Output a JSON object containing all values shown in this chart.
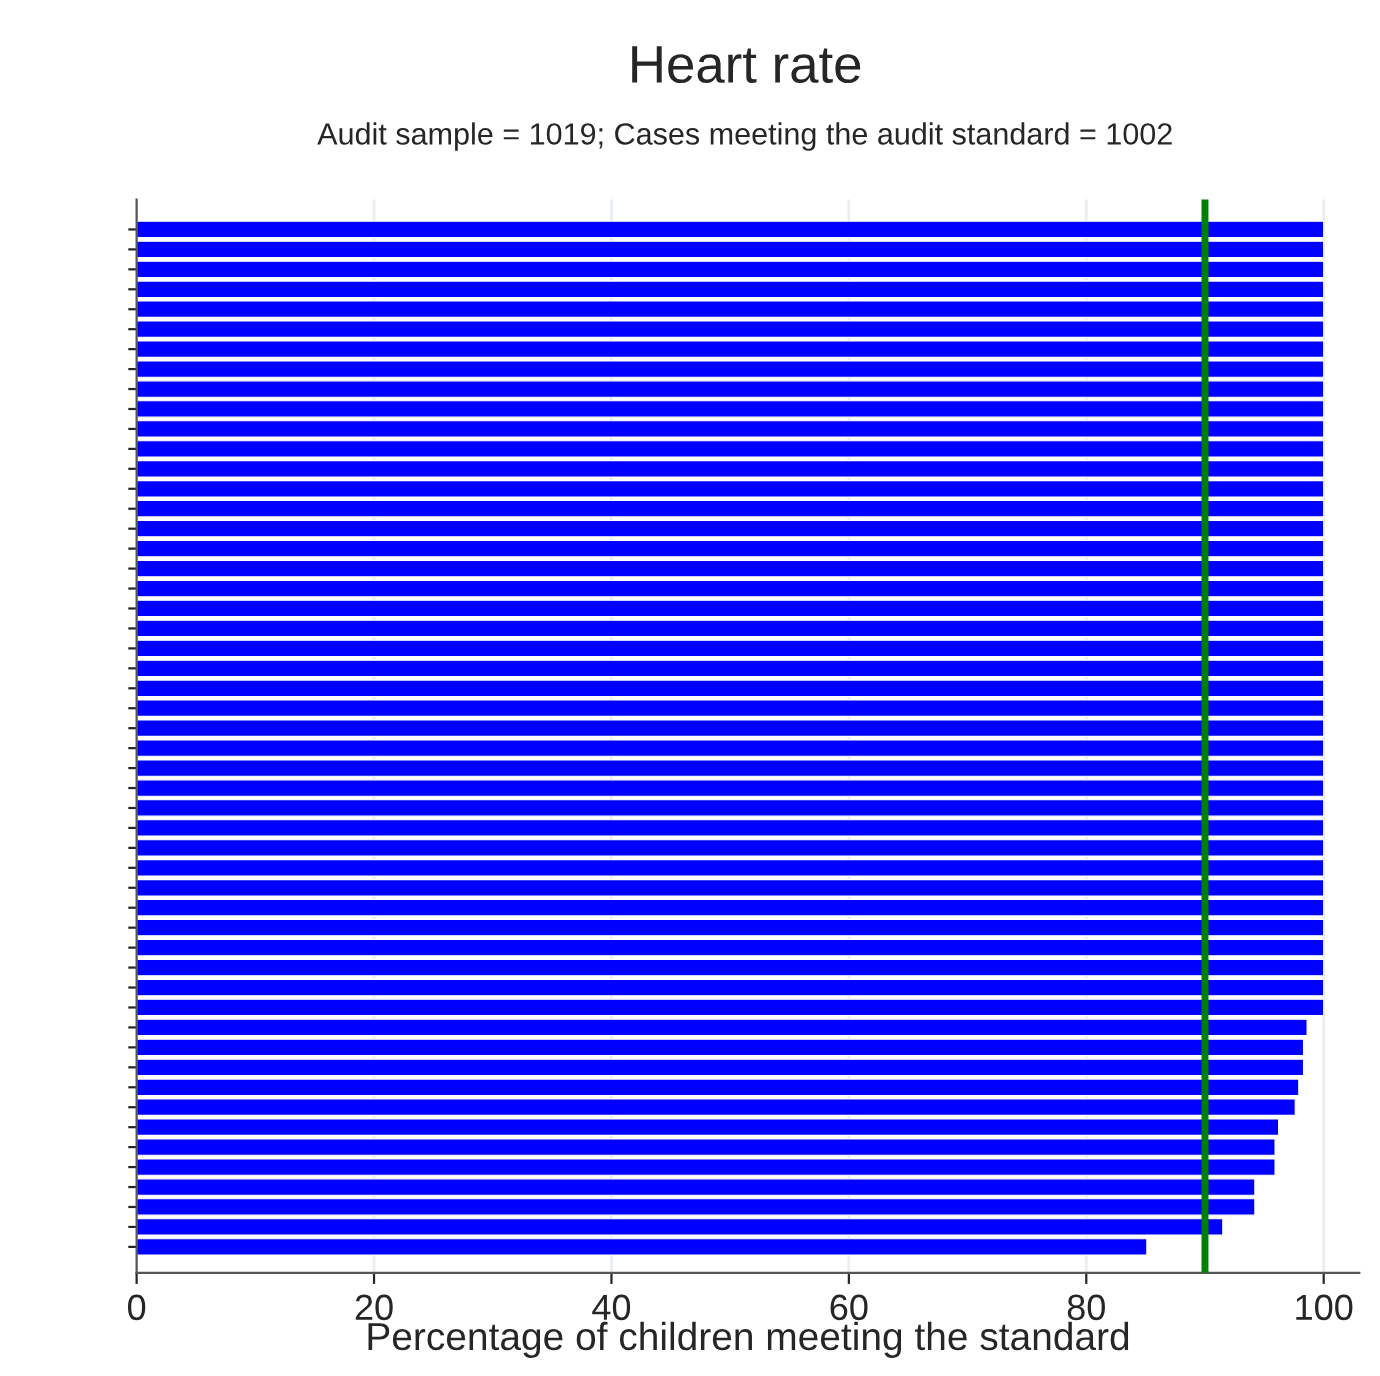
{
  "chart_data": {
    "type": "bar",
    "orientation": "horizontal",
    "title": "Heart rate",
    "subtitle": "Audit sample = 1019; Cases meeting the audit standard = 1002",
    "xlabel": "Percentage of children meeting the standard",
    "categories": [
      null,
      null,
      null,
      null,
      null,
      null,
      null,
      null,
      null,
      null,
      null,
      null,
      null,
      null,
      null,
      null,
      null,
      null,
      null,
      null,
      null,
      null,
      null,
      null,
      null,
      null,
      null,
      null,
      null,
      null,
      null,
      null,
      null,
      null,
      null,
      null,
      null,
      null,
      null,
      null,
      null,
      null,
      null,
      null,
      null,
      null,
      null,
      null,
      null,
      null,
      null,
      null
    ],
    "values": [
      100,
      100,
      100,
      100,
      100,
      100,
      100,
      100,
      100,
      100,
      100,
      100,
      100,
      100,
      100,
      100,
      100,
      100,
      100,
      100,
      100,
      100,
      100,
      100,
      100,
      100,
      100,
      100,
      100,
      100,
      100,
      100,
      100,
      100,
      100,
      100,
      100,
      100,
      100,
      100,
      98.6,
      98.3,
      98.3,
      97.9,
      97.6,
      96.2,
      95.9,
      95.9,
      94.2,
      94.2,
      91.5,
      85.1
    ],
    "color": "#0000ff",
    "xlim": [
      0,
      103
    ],
    "xticks": [
      0,
      20,
      40,
      60,
      80,
      100
    ],
    "grid": "x",
    "ref_lines": [
      {
        "axis": "x",
        "value": 90,
        "color": "#008000"
      }
    ]
  }
}
